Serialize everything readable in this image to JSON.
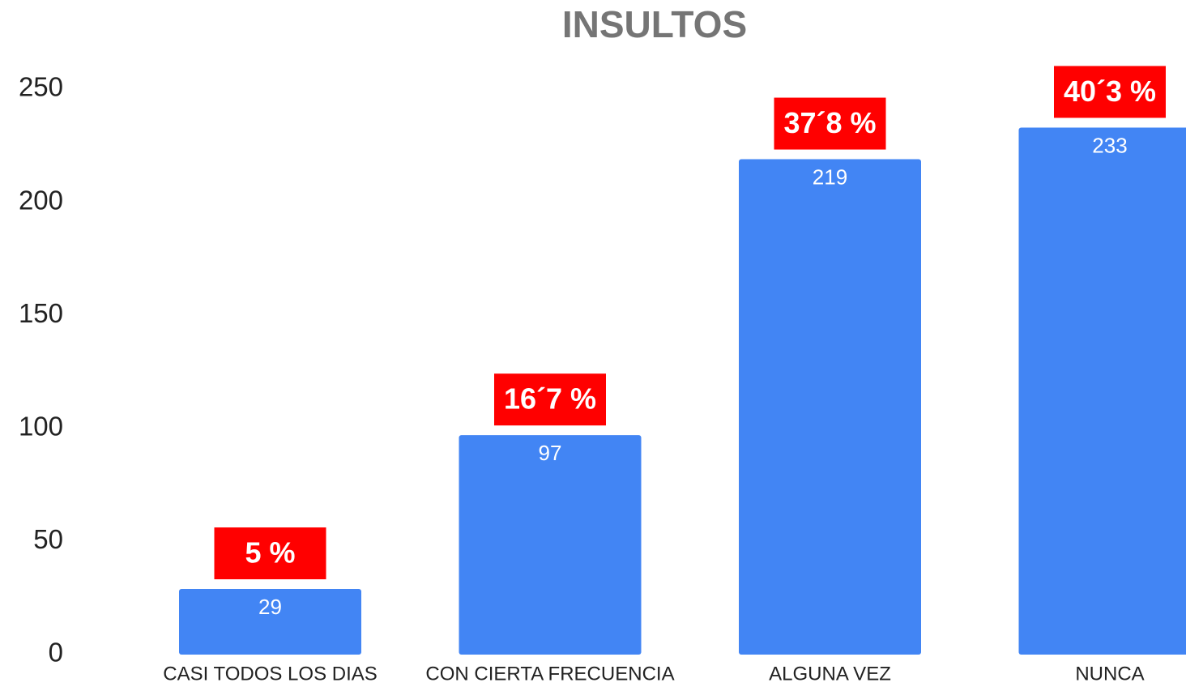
{
  "chart_data": {
    "type": "bar",
    "title": "INSULTOS",
    "categories": [
      "CASI TODOS LOS DIAS",
      "CON CIERTA FRECUENCIA",
      "ALGUNA VEZ",
      "NUNCA"
    ],
    "values": [
      29,
      97,
      219,
      233
    ],
    "annotations": [
      "5 %",
      "16´7 %",
      "37´8 %",
      "40´3 %"
    ],
    "color": "#4285f4",
    "annotation_color": "#ff0000",
    "ylim": [
      0,
      250
    ],
    "yticks": [
      0,
      50,
      100,
      150,
      200,
      250
    ],
    "grid": false
  }
}
